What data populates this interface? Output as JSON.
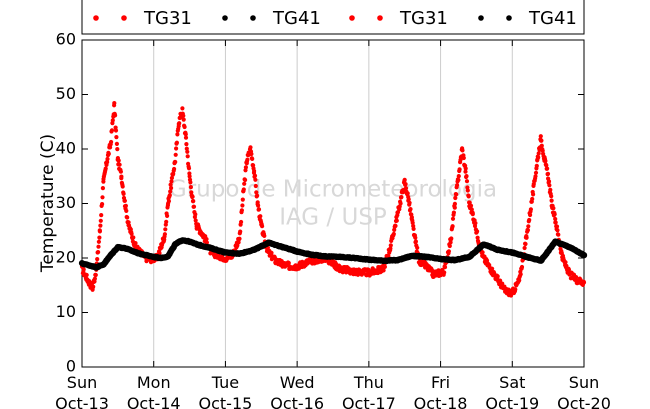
{
  "chart_data": {
    "type": "scatter",
    "ylabel": "Temperature (C)",
    "ylim": [
      0,
      60
    ],
    "yticks": [
      0,
      10,
      20,
      30,
      40,
      50,
      60
    ],
    "xlim": [
      0,
      7
    ],
    "xtick_labels": [
      {
        "day": "Sun",
        "date": "Oct-13"
      },
      {
        "day": "Mon",
        "date": "Oct-14"
      },
      {
        "day": "Tue",
        "date": "Oct-15"
      },
      {
        "day": "Wed",
        "date": "Oct-16"
      },
      {
        "day": "Thu",
        "date": "Oct-17"
      },
      {
        "day": "Fri",
        "date": "Oct-18"
      },
      {
        "day": "Sat",
        "date": "Oct-19"
      },
      {
        "day": "Sun",
        "date": "Oct-20"
      }
    ],
    "grid": "vertical",
    "legend_position": "top",
    "legend": [
      {
        "label": "TG31",
        "color": "#ff0000"
      },
      {
        "label": "TG41",
        "color": "#000000"
      },
      {
        "label": "TG31",
        "color": "#ff0000"
      },
      {
        "label": "TG41",
        "color": "#000000"
      }
    ],
    "watermark": [
      "Grupo de Micrometeorologia",
      "IAG / USP"
    ],
    "series": [
      {
        "name": "TG31",
        "color": "#ff0000",
        "x": [
          0,
          0.1,
          0.15,
          0.2,
          0.25,
          0.3,
          0.35,
          0.4,
          0.45,
          0.5,
          0.55,
          0.6,
          0.65,
          0.75,
          0.85,
          0.9,
          0.95,
          1.05,
          1.15,
          1.2,
          1.3,
          1.35,
          1.4,
          1.45,
          1.5,
          1.55,
          1.6,
          1.7,
          1.8,
          1.9,
          2.0,
          2.1,
          2.2,
          2.25,
          2.3,
          2.35,
          2.4,
          2.45,
          2.5,
          2.55,
          2.6,
          2.7,
          2.8,
          2.9,
          3.0,
          3.2,
          3.4,
          3.5,
          3.6,
          3.8,
          4.0,
          4.2,
          4.3,
          4.4,
          4.5,
          4.55,
          4.6,
          4.65,
          4.7,
          4.8,
          4.9,
          5.05,
          5.15,
          5.2,
          5.3,
          5.35,
          5.4,
          5.45,
          5.55,
          5.6,
          5.7,
          5.8,
          5.9,
          6.0,
          6.1,
          6.2,
          6.3,
          6.35,
          6.4,
          6.45,
          6.5,
          6.55,
          6.6,
          6.7,
          6.8,
          6.9,
          7.0
        ],
        "values": [
          18,
          15.5,
          14.5,
          18,
          25,
          34,
          38,
          41,
          48,
          38,
          35,
          30,
          26,
          22,
          20.5,
          20,
          19.8,
          20,
          24,
          30,
          38,
          45,
          47,
          42,
          35,
          30,
          26,
          24,
          21,
          20.5,
          20,
          20.5,
          24,
          32,
          38,
          40,
          36,
          30,
          26,
          23,
          21,
          19.5,
          18.8,
          18.5,
          18.5,
          19.5,
          20,
          19,
          18,
          17.5,
          17.3,
          18,
          22,
          28,
          34,
          31,
          27,
          23,
          19.5,
          18.5,
          17,
          17.5,
          24,
          30,
          40,
          36,
          30,
          28,
          22,
          20,
          18,
          16,
          14,
          13.5,
          16,
          24,
          33,
          38,
          42,
          38,
          35,
          30,
          27,
          20,
          17,
          16,
          15.5
        ]
      },
      {
        "name": "TG41",
        "color": "#000000",
        "x": [
          0,
          0.2,
          0.3,
          0.4,
          0.5,
          0.6,
          0.7,
          0.8,
          0.9,
          1.0,
          1.1,
          1.2,
          1.3,
          1.4,
          1.5,
          1.6,
          1.8,
          2.0,
          2.2,
          2.4,
          2.6,
          2.8,
          3.0,
          3.2,
          3.4,
          3.6,
          3.8,
          4.0,
          4.2,
          4.4,
          4.6,
          4.8,
          5.0,
          5.2,
          5.4,
          5.6,
          5.8,
          6.0,
          6.2,
          6.4,
          6.6,
          6.8,
          7.0
        ],
        "values": [
          19,
          18.3,
          18.8,
          20.5,
          22,
          21.8,
          21.3,
          20.8,
          20.5,
          20.2,
          20,
          20.3,
          22.5,
          23.3,
          23,
          22.5,
          21.8,
          21,
          20.8,
          21.5,
          22.8,
          22,
          21.2,
          20.6,
          20.3,
          20.2,
          20,
          19.7,
          19.5,
          19.6,
          20.4,
          20.2,
          19.8,
          19.6,
          20.2,
          22.5,
          21.5,
          21,
          20.2,
          19.5,
          23,
          22,
          20.5
        ]
      }
    ]
  }
}
